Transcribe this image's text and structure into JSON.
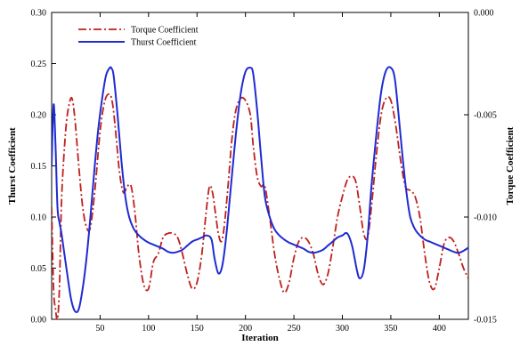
{
  "chart_data": {
    "type": "line",
    "title": "",
    "xlabel": "Iteration",
    "ylabel": "Thurst Coefficient",
    "y2label": "Torque Coefficient",
    "xlim": [
      0,
      430
    ],
    "ylim": [
      0,
      0.3
    ],
    "y2lim": [
      -0.015,
      0.0
    ],
    "xticks": [
      50,
      100,
      150,
      200,
      250,
      300,
      350,
      400
    ],
    "xtick_labels": [
      "50",
      "100",
      "150",
      "200",
      "250",
      "300",
      "350",
      "400"
    ],
    "yticks": [
      0,
      0.05,
      0.1,
      0.15,
      0.2,
      0.25,
      0.3
    ],
    "ytick_labels": [
      "0.00",
      "0.05",
      "0.10",
      "0.15",
      "0.20",
      "0.25",
      "0.30"
    ],
    "y2ticks": [
      -0.015,
      -0.01,
      -0.005,
      0.0
    ],
    "y2tick_labels": [
      "-0.015",
      "-0.010",
      "-0.005",
      "0.000"
    ],
    "grid": false,
    "legend_position": "top-left",
    "series": [
      {
        "name": "Torque Coefficient",
        "axis": "right",
        "color": "#c0201c",
        "style": "dash-dot",
        "x": [
          0,
          2,
          4,
          6,
          8,
          10,
          12,
          15,
          18,
          21,
          24,
          28,
          32,
          36,
          40,
          45,
          50,
          55,
          60,
          63,
          66,
          70,
          74,
          78,
          82,
          86,
          90,
          95,
          100,
          105,
          110,
          115,
          120,
          125,
          130,
          135,
          140,
          145,
          150,
          155,
          160,
          163,
          166,
          169,
          172,
          175,
          178,
          182,
          186,
          190,
          195,
          200,
          205,
          208,
          212,
          216,
          220,
          225,
          230,
          235,
          240,
          245,
          250,
          255,
          260,
          265,
          270,
          275,
          280,
          285,
          290,
          295,
          300,
          305,
          310,
          314,
          318,
          322,
          326,
          330,
          335,
          340,
          345,
          350,
          355,
          360,
          365,
          370,
          375,
          380,
          385,
          390,
          395,
          400,
          405,
          410,
          415,
          420,
          425,
          430
        ],
        "y": [
          -0.0095,
          -0.0135,
          -0.0145,
          -0.015,
          -0.0135,
          -0.0095,
          -0.0075,
          -0.0055,
          -0.0045,
          -0.0042,
          -0.0052,
          -0.0075,
          -0.0095,
          -0.0105,
          -0.0105,
          -0.0085,
          -0.0058,
          -0.0043,
          -0.004,
          -0.0045,
          -0.0058,
          -0.0078,
          -0.0088,
          -0.0085,
          -0.0085,
          -0.0098,
          -0.0118,
          -0.0133,
          -0.0135,
          -0.0122,
          -0.0118,
          -0.011,
          -0.0108,
          -0.0108,
          -0.011,
          -0.0118,
          -0.0128,
          -0.0135,
          -0.0132,
          -0.0118,
          -0.0095,
          -0.0085,
          -0.0088,
          -0.0098,
          -0.0108,
          -0.0112,
          -0.0105,
          -0.0085,
          -0.0062,
          -0.0048,
          -0.0042,
          -0.0043,
          -0.005,
          -0.0065,
          -0.008,
          -0.0085,
          -0.0085,
          -0.01,
          -0.0118,
          -0.013,
          -0.0137,
          -0.0132,
          -0.012,
          -0.0112,
          -0.011,
          -0.0112,
          -0.0118,
          -0.0128,
          -0.0133,
          -0.0128,
          -0.0115,
          -0.01,
          -0.009,
          -0.0082,
          -0.008,
          -0.0083,
          -0.0095,
          -0.0108,
          -0.011,
          -0.0095,
          -0.007,
          -0.005,
          -0.0042,
          -0.0043,
          -0.0055,
          -0.0072,
          -0.0085,
          -0.0087,
          -0.009,
          -0.01,
          -0.0118,
          -0.0132,
          -0.0135,
          -0.0125,
          -0.0113,
          -0.011,
          -0.0112,
          -0.0118,
          -0.0125,
          -0.013
        ]
      },
      {
        "name": "Thurst Coefficient",
        "axis": "left",
        "color": "#1f2bd1",
        "style": "solid",
        "x": [
          0,
          2,
          4,
          6,
          8,
          10,
          13,
          16,
          20,
          24,
          28,
          32,
          36,
          40,
          44,
          48,
          52,
          56,
          60,
          62,
          64,
          68,
          72,
          76,
          80,
          85,
          90,
          95,
          100,
          105,
          110,
          115,
          120,
          125,
          130,
          135,
          140,
          145,
          150,
          155,
          160,
          165,
          168,
          172,
          176,
          180,
          185,
          190,
          195,
          200,
          205,
          208,
          212,
          216,
          220,
          225,
          230,
          235,
          240,
          245,
          250,
          255,
          260,
          265,
          270,
          275,
          280,
          285,
          290,
          295,
          300,
          305,
          310,
          315,
          318,
          322,
          326,
          330,
          335,
          340,
          345,
          350,
          354,
          358,
          362,
          366,
          370,
          375,
          380,
          385,
          390,
          395,
          400,
          405,
          410,
          415,
          420,
          425,
          430
        ],
        "y": [
          0.15,
          0.21,
          0.17,
          0.11,
          0.095,
          0.085,
          0.065,
          0.045,
          0.02,
          0.008,
          0.01,
          0.03,
          0.06,
          0.1,
          0.145,
          0.185,
          0.215,
          0.238,
          0.246,
          0.245,
          0.238,
          0.2,
          0.155,
          0.12,
          0.1,
          0.088,
          0.082,
          0.078,
          0.075,
          0.073,
          0.071,
          0.069,
          0.066,
          0.065,
          0.066,
          0.068,
          0.072,
          0.076,
          0.078,
          0.08,
          0.082,
          0.078,
          0.06,
          0.045,
          0.052,
          0.08,
          0.13,
          0.18,
          0.22,
          0.242,
          0.246,
          0.24,
          0.205,
          0.16,
          0.12,
          0.1,
          0.088,
          0.082,
          0.078,
          0.075,
          0.073,
          0.071,
          0.069,
          0.066,
          0.065,
          0.066,
          0.068,
          0.072,
          0.076,
          0.08,
          0.082,
          0.084,
          0.072,
          0.048,
          0.04,
          0.048,
          0.08,
          0.13,
          0.18,
          0.222,
          0.243,
          0.246,
          0.236,
          0.2,
          0.16,
          0.125,
          0.1,
          0.088,
          0.082,
          0.078,
          0.076,
          0.074,
          0.072,
          0.07,
          0.068,
          0.066,
          0.065,
          0.067,
          0.07
        ]
      }
    ]
  }
}
